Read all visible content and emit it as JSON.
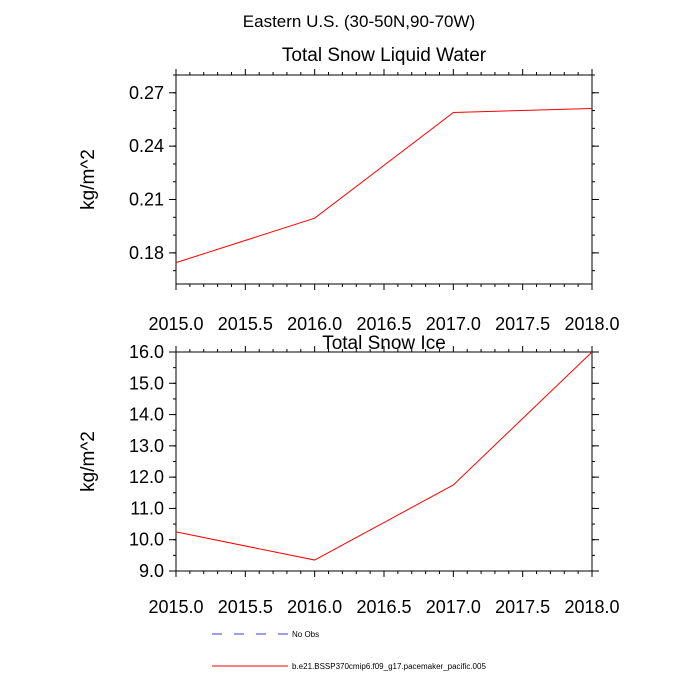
{
  "figure": {
    "suptitle": "Eastern U.S. (30-50N,90-70W)"
  },
  "chart_data": [
    {
      "type": "line",
      "title": "Total Snow Liquid Water",
      "xlabel": "",
      "ylabel": "kg/m^2",
      "x": [
        2015.0,
        2016.0,
        2017.0,
        2018.0
      ],
      "series": [
        {
          "name": "b.e21.BSSP370cmip6.f09_g17.pacemaker_pacific.005",
          "color": "#ff0000",
          "values": [
            0.1745,
            0.1995,
            0.2589,
            0.2612
          ]
        }
      ],
      "xlim": [
        2015.0,
        2018.0
      ],
      "ylim": [
        0.1625,
        0.28
      ],
      "xticks": [
        "2015.0",
        "2015.5",
        "2016.0",
        "2016.5",
        "2017.0",
        "2017.5",
        "2018.0"
      ],
      "yticks": [
        "0.18",
        "0.21",
        "0.24",
        "0.27"
      ],
      "ytick_values": [
        0.18,
        0.21,
        0.24,
        0.27
      ],
      "grid": false
    },
    {
      "type": "line",
      "title": "Total Snow Ice",
      "xlabel": "",
      "ylabel": "kg/m^2",
      "x": [
        2015.0,
        2016.0,
        2017.0,
        2018.0
      ],
      "series": [
        {
          "name": "b.e21.BSSP370cmip6.f09_g17.pacemaker_pacific.005",
          "color": "#ff0000",
          "values": [
            10.25,
            9.35,
            11.75,
            16.0
          ]
        }
      ],
      "xlim": [
        2015.0,
        2018.0
      ],
      "ylim": [
        9.0,
        16.0
      ],
      "xticks": [
        "2015.0",
        "2015.5",
        "2016.0",
        "2016.5",
        "2017.0",
        "2017.5",
        "2018.0"
      ],
      "yticks": [
        "9.0",
        "10.0",
        "11.0",
        "12.0",
        "13.0",
        "14.0",
        "15.0",
        "16.0"
      ],
      "ytick_values": [
        9,
        10,
        11,
        12,
        13,
        14,
        15,
        16
      ],
      "grid": false
    }
  ],
  "legend": {
    "placement": "bottom-center",
    "items": [
      {
        "label": "No Obs",
        "color": "#3b3bd1",
        "style": "dashed"
      },
      {
        "label": "b.e21.BSSP370cmip6.f09_g17.pacemaker_pacific.005",
        "color": "#ff0000",
        "style": "solid"
      }
    ]
  }
}
